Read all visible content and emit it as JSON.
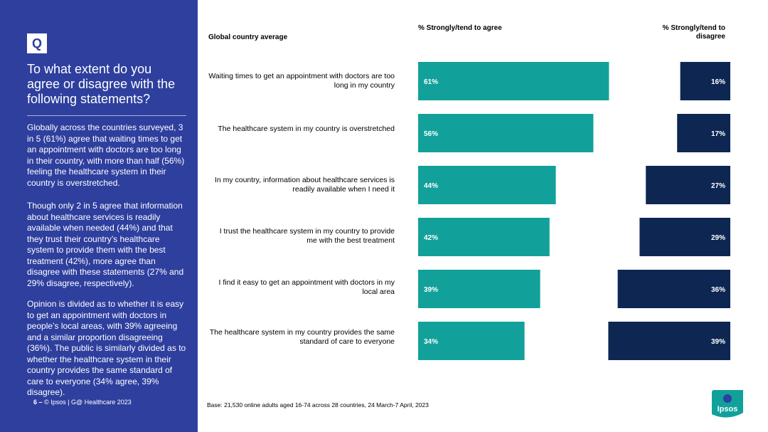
{
  "sidebar": {
    "q_label": "Q",
    "question": "To what extent do you agree or disagree with the following statements?",
    "paragraphs": [
      "Globally across the countries surveyed, 3 in 5 (61%) agree that waiting times to get an appointment with doctors are too long in their country, with more than half (56%) feeling the healthcare system in their country is overstretched.",
      "Though only 2 in 5 agree that information about healthcare services is readily available when needed (44%) and that they trust their country’s healthcare system to provide them with the best treatment (42%), more agree than disagree with these statements (27% and 29% disagree, respectively).",
      "Opinion is divided as to whether it is easy to get an appointment with doctors in people’s local areas, with 39% agreeing and a similar proportion disagreeing (36%). The public is similarly divided as to whether the healthcare system in their country provides the same standard of care to everyone (34% agree, 39% disagree)."
    ],
    "page_number": "6",
    "footer_sep": "–",
    "footer_text": "© Ipsos | G@ Healthcare 2023"
  },
  "base_note": "Base: 21,530 online adults aged 16-74 across 28 countries, 24 March-7 April, 2023",
  "logo_text": "Ipsos",
  "chart_data": {
    "type": "bar",
    "title": "Global country average",
    "series": [
      {
        "name": "% Strongly/tend to agree",
        "color": "#12a19a",
        "values": [
          61,
          56,
          44,
          42,
          39,
          34
        ]
      },
      {
        "name": "% Strongly/tend to disagree",
        "color": "#0d2752",
        "values": [
          16,
          17,
          27,
          29,
          36,
          39
        ]
      }
    ],
    "categories": [
      "Waiting times to get an appointment with doctors are too long in my country",
      "The healthcare system in my country is overstretched",
      "In my country, information about healthcare services is readily available when I need it",
      "I trust the healthcare system in my country to provide me with the best treatment",
      "I find it easy to get an appointment with doctors in my local area",
      "The healthcare system in my country provides the same standard of care to everyone"
    ],
    "labels_agree": [
      "61%",
      "56%",
      "44%",
      "42%",
      "39%",
      "34%"
    ],
    "labels_disagree": [
      "16%",
      "17%",
      "27%",
      "29%",
      "36%",
      "39%"
    ],
    "xlim": [
      0,
      100
    ]
  }
}
